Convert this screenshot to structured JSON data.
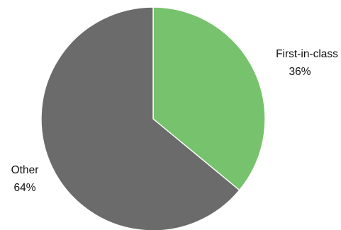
{
  "chart_data": {
    "type": "pie",
    "slices": [
      {
        "label": "First-in-class",
        "value": 36,
        "value_label": "36%",
        "color": "#77C26C"
      },
      {
        "label": "Other",
        "value": 64,
        "value_label": "64%",
        "color": "#6B6B6B"
      }
    ],
    "start": "12 o'clock",
    "direction": "clockwise",
    "legend": "none"
  }
}
